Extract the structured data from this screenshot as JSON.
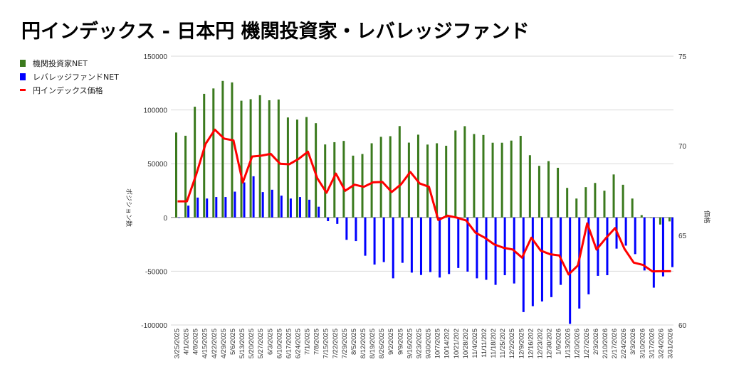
{
  "title": "円インデックス - 日本円 機関投資家・レバレッジファンド",
  "chart_data": {
    "type": "bar+line",
    "title": "円インデックス - 日本円 機関投資家・レバレッジファンド",
    "ylabel": "ポジション数",
    "y2label": "価格",
    "ylim": [
      -100000,
      150000
    ],
    "y2lim": [
      60,
      75
    ],
    "yticks": [
      "150000",
      "100000",
      "50000",
      "0",
      "-50000",
      "-100000"
    ],
    "y2ticks": [
      "75",
      "70",
      "65",
      "60"
    ],
    "grid": true,
    "legend_position": "left",
    "categories": [
      "3/25/2025",
      "4/1/2025",
      "4/8/2025",
      "4/15/2025",
      "4/22/2025",
      "4/29/2025",
      "5/6/2025",
      "5/13/2025",
      "5/20/2025",
      "5/27/2025",
      "6/3/2025",
      "6/10/2025",
      "6/17/2025",
      "6/24/2025",
      "7/1/2025",
      "7/8/2025",
      "7/15/2025",
      "7/22/2025",
      "7/29/2025",
      "8/5/2025",
      "8/12/2025",
      "8/19/2025",
      "8/26/2025",
      "9/2/2025",
      "9/9/2025",
      "9/16/2025",
      "9/23/2025",
      "9/30/2025",
      "10/7/2025",
      "10/14/202",
      "10/21/202",
      "10/28/202",
      "11/4/2025",
      "11/11/202",
      "11/18/202",
      "11/25/202",
      "12/2/2025",
      "12/9/2025",
      "12/16/202",
      "12/23/202",
      "12/30/202",
      "1/6/2026",
      "1/13/2026",
      "1/20/2026",
      "1/27/2026",
      "2/3/2026",
      "2/10/2026",
      "2/17/2026",
      "2/24/2026",
      "3/3/2026",
      "3/10/2026",
      "3/17/2026",
      "3/24/2026",
      "3/31/2026"
    ],
    "series": [
      {
        "name": "機関投資家NET",
        "type": "bar",
        "axis": "left",
        "color": "#3b7a1e",
        "values": [
          79000,
          76000,
          103000,
          115000,
          120000,
          127000,
          125600,
          108600,
          110000,
          113700,
          109000,
          109700,
          93000,
          91000,
          93400,
          87700,
          67900,
          70000,
          71200,
          57500,
          59000,
          69000,
          75000,
          75600,
          85000,
          69600,
          77000,
          67800,
          69000,
          66700,
          80900,
          84900,
          77600,
          76700,
          69500,
          69500,
          71500,
          75900,
          57900,
          48000,
          52400,
          46200,
          27500,
          17600,
          28200,
          32100,
          24900,
          40000,
          30400,
          17600,
          2200,
          -400,
          -6600,
          -3700
        ]
      },
      {
        "name": "レバレッジファンドNET",
        "type": "bar",
        "axis": "left",
        "color": "#0000ff",
        "values": [
          0,
          11000,
          18500,
          17600,
          19000,
          19000,
          24000,
          32600,
          38300,
          23600,
          25800,
          20300,
          17600,
          19000,
          16500,
          10000,
          -3400,
          -6000,
          -20800,
          -22000,
          -35600,
          -43800,
          -41500,
          -56600,
          -42200,
          -51300,
          -53500,
          -50800,
          -55900,
          -52600,
          -47000,
          -50400,
          -56600,
          -58000,
          -62700,
          -53700,
          -61400,
          -88000,
          -82500,
          -78100,
          -74100,
          -62700,
          -99000,
          -84700,
          -71500,
          -54300,
          -53700,
          -29000,
          -26200,
          -34100,
          -49300,
          -65300,
          -54800,
          -46200
        ]
      },
      {
        "name": "円インデックス価格",
        "type": "line",
        "axis": "right",
        "color": "#ff0000",
        "values": [
          66.9,
          66.9,
          68.4,
          70.1,
          70.9,
          70.4,
          70.3,
          67.95,
          69.4,
          69.45,
          69.55,
          69.0,
          68.97,
          69.27,
          69.67,
          68.19,
          67.38,
          68.45,
          67.49,
          67.83,
          67.71,
          67.96,
          67.98,
          67.42,
          67.85,
          68.54,
          67.9,
          67.71,
          65.86,
          66.1,
          65.99,
          65.83,
          65.15,
          64.87,
          64.5,
          64.31,
          64.21,
          63.76,
          64.87,
          64.15,
          63.95,
          63.88,
          62.82,
          63.32,
          65.67,
          64.21,
          64.84,
          65.41,
          64.25,
          63.48,
          63.35,
          62.99,
          63.0,
          63.0
        ]
      }
    ]
  }
}
